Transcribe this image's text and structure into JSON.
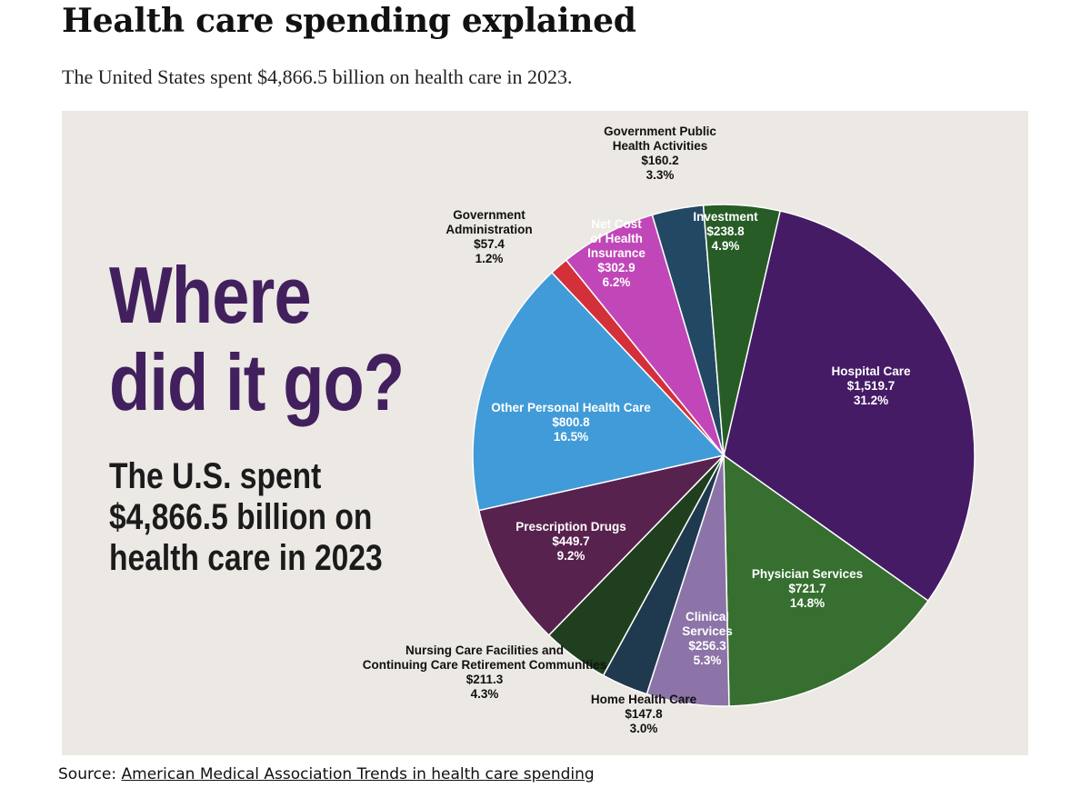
{
  "header": {
    "title": "Health care spending explained",
    "subtitle": "The United States spent $4,866.5 billion on health care in 2023."
  },
  "infographic": {
    "heading_line1": "Where",
    "heading_line2": "did it go?",
    "spent_line1": "The U.S. spent",
    "spent_line2": "$4,866.5 billion on",
    "spent_line3": "health care in 2023"
  },
  "source": {
    "label": "Source:",
    "link_text": "American Medical Association Trends in health care spending"
  },
  "chart_data": {
    "type": "pie",
    "start_angle_deg": 13,
    "direction": "clockwise",
    "slices": [
      {
        "lines": [
          "Hospital Care"
        ],
        "value": "$1,519.7",
        "percent": "31.2%",
        "share": 31.2,
        "color": "#451b66",
        "label_color": "#ffffff"
      },
      {
        "lines": [
          "Physician Services"
        ],
        "value": "$721.7",
        "percent": "14.8%",
        "share": 14.8,
        "color": "#366f2f",
        "label_color": "#ffffff"
      },
      {
        "lines": [
          "Clinical",
          "Services"
        ],
        "value": "$256.3",
        "percent": "5.3%",
        "share": 5.3,
        "color": "#8c74a8",
        "label_color": "#ffffff"
      },
      {
        "lines": [
          "Home Health Care"
        ],
        "value": "$147.8",
        "percent": "3.0%",
        "share": 3.0,
        "color": "#1f3a4f",
        "label_color": "#111111"
      },
      {
        "lines": [
          "Nursing Care Facilities and",
          "Continuing Care Retirement Communities"
        ],
        "value": "$211.3",
        "percent": "4.3%",
        "share": 4.3,
        "color": "#1f3f1e",
        "label_color": "#111111"
      },
      {
        "lines": [
          "Prescription Drugs"
        ],
        "value": "$449.7",
        "percent": "9.2%",
        "share": 9.2,
        "color": "#58224f",
        "label_color": "#ffffff"
      },
      {
        "lines": [
          "Other Personal Health Care"
        ],
        "value": "$800.8",
        "percent": "16.5%",
        "share": 16.5,
        "color": "#419bd8",
        "label_color": "#ffffff"
      },
      {
        "lines": [
          "Government",
          "Administration"
        ],
        "value": "$57.4",
        "percent": "1.2%",
        "share": 1.2,
        "color": "#d4303a",
        "label_color": "#111111"
      },
      {
        "lines": [
          "Net Cost",
          "of Health",
          "Insurance"
        ],
        "value": "$302.9",
        "percent": "6.2%",
        "share": 6.2,
        "color": "#c147b9",
        "label_color": "#ffffff"
      },
      {
        "lines": [
          "Government Public",
          "Health Activities"
        ],
        "value": "$160.2",
        "percent": "3.3%",
        "share": 3.3,
        "color": "#234863",
        "label_color": "#111111"
      },
      {
        "lines": [
          "Investment"
        ],
        "value": "$238.8",
        "percent": "4.9%",
        "share": 4.9,
        "color": "#275c26",
        "label_color": "#ffffff"
      }
    ]
  }
}
